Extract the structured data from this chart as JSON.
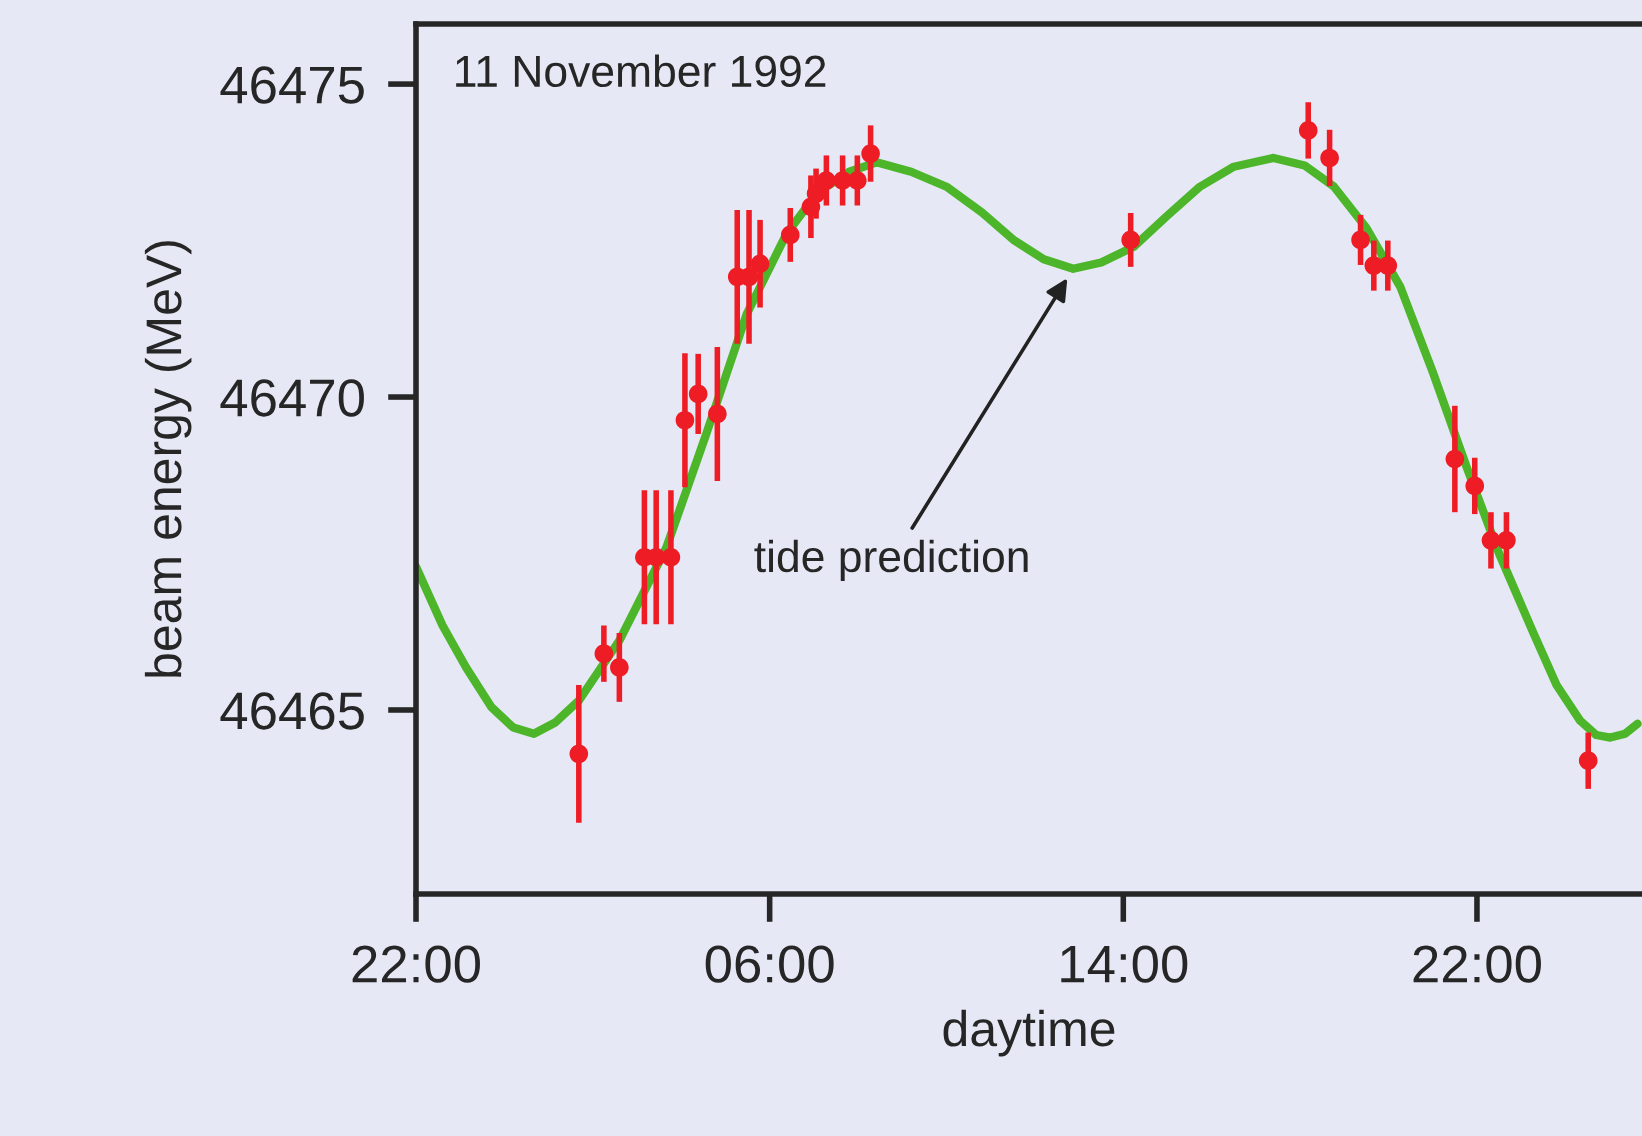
{
  "chart_data": {
    "type": "scatter",
    "xlabel": "daytime",
    "ylabel": "beam energy (MeV)",
    "annotations": [
      "11 November 1992",
      {
        "text": "tide prediction",
        "x": "1992-11-11T12:52",
        "y": 46472.05
      }
    ],
    "xlim": [
      "1992-11-10T22:00",
      "1992-11-12T01:44"
    ],
    "ylim": [
      46462.06,
      46475.96
    ],
    "xticks": [
      {
        "value": "1992-11-10T22:00",
        "label": "22:00"
      },
      {
        "value": "1992-11-11T06:00",
        "label": "06:00"
      },
      {
        "value": "1992-11-11T14:00",
        "label": "14:00"
      },
      {
        "value": "1992-11-11T22:00",
        "label": "22:00"
      }
    ],
    "yticks": [
      46465,
      46470,
      46475
    ],
    "grid": false,
    "marker": "circle",
    "series": [
      {
        "type": "line",
        "color": "#4cb52a",
        "line_style": "solid",
        "marker": "none",
        "x": [
          "1992-11-10T22:00",
          "1992-11-10T22:36",
          "1992-11-10T23:08",
          "1992-11-10T23:42",
          "1992-11-11T00:12",
          "1992-11-11T00:40",
          "1992-11-11T01:09",
          "1992-11-11T01:41",
          "1992-11-11T02:36",
          "1992-11-11T03:40",
          "1992-11-11T04:34",
          "1992-11-11T05:29",
          "1992-11-11T06:23",
          "1992-11-11T06:51",
          "1992-11-11T07:17",
          "1992-11-11T07:48",
          "1992-11-11T08:25",
          "1992-11-11T09:12",
          "1992-11-11T10:00",
          "1992-11-11T10:48",
          "1992-11-11T11:31",
          "1992-11-11T12:12",
          "1992-11-11T12:52",
          "1992-11-11T13:30",
          "1992-11-11T14:14",
          "1992-11-11T15:00",
          "1992-11-11T15:44",
          "1992-11-11T16:30",
          "1992-11-11T17:24",
          "1992-11-11T18:06",
          "1992-11-11T18:46",
          "1992-11-11T19:30",
          "1992-11-11T20:16",
          "1992-11-11T21:00",
          "1992-11-11T21:46",
          "1992-11-11T22:30",
          "1992-11-11T23:17",
          "1992-11-11T23:48",
          "1992-11-12T00:20",
          "1992-11-12T00:42",
          "1992-11-12T01:01",
          "1992-11-12T01:21",
          "1992-11-12T01:38"
        ],
        "values": [
          46467.29,
          46466.35,
          46465.68,
          46465.05,
          46464.72,
          46464.62,
          46464.8,
          46465.15,
          46466.11,
          46467.6,
          46469.41,
          46471.33,
          46472.61,
          46473.05,
          46473.36,
          46473.6,
          46473.75,
          46473.6,
          46473.36,
          46472.95,
          46472.51,
          46472.2,
          46472.05,
          46472.15,
          46472.4,
          46472.9,
          46473.36,
          46473.68,
          46473.82,
          46473.7,
          46473.36,
          46472.7,
          46471.76,
          46470.4,
          46468.88,
          46467.5,
          46466.22,
          46465.4,
          46464.83,
          46464.6,
          46464.56,
          46464.62,
          46464.78
        ]
      },
      {
        "color": "#ee1c25",
        "x": [
          "1992-11-11T01:41",
          "1992-11-11T02:15",
          "1992-11-11T02:36",
          "1992-11-11T03:10",
          "1992-11-11T03:26",
          "1992-11-11T03:46",
          "1992-11-11T04:05",
          "1992-11-11T04:23",
          "1992-11-11T04:49",
          "1992-11-11T05:16",
          "1992-11-11T05:32",
          "1992-11-11T05:47",
          "1992-11-11T06:28",
          "1992-11-11T06:56",
          "1992-11-11T07:03",
          "1992-11-11T07:17",
          "1992-11-11T07:39",
          "1992-11-11T07:59",
          "1992-11-11T08:17",
          "1992-11-11T14:10",
          "1992-11-11T18:11",
          "1992-11-11T18:40",
          "1992-11-11T19:22",
          "1992-11-11T19:40",
          "1992-11-11T19:59",
          "1992-11-11T21:30",
          "1992-11-11T21:57",
          "1992-11-11T22:19",
          "1992-11-11T22:40",
          "1992-11-12T00:31"
        ],
        "values": [
          46464.3,
          46465.9,
          46465.68,
          46467.44,
          46467.44,
          46467.44,
          46469.63,
          46470.05,
          46469.73,
          46471.92,
          46471.92,
          46472.13,
          46472.59,
          46473.04,
          46473.25,
          46473.46,
          46473.46,
          46473.46,
          46473.89,
          46472.51,
          46474.26,
          46473.82,
          46472.51,
          46472.1,
          46472.1,
          46469.01,
          46468.58,
          46467.71,
          46467.71,
          46464.19
        ],
        "errors": [
          1.1,
          0.45,
          0.55,
          1.07,
          1.07,
          1.07,
          1.07,
          0.64,
          1.07,
          1.07,
          1.07,
          0.7,
          0.43,
          0.5,
          0.4,
          0.4,
          0.4,
          0.4,
          0.45,
          0.43,
          0.45,
          0.45,
          0.4,
          0.4,
          0.4,
          0.85,
          0.45,
          0.45,
          0.45,
          0.45
        ]
      }
    ]
  }
}
